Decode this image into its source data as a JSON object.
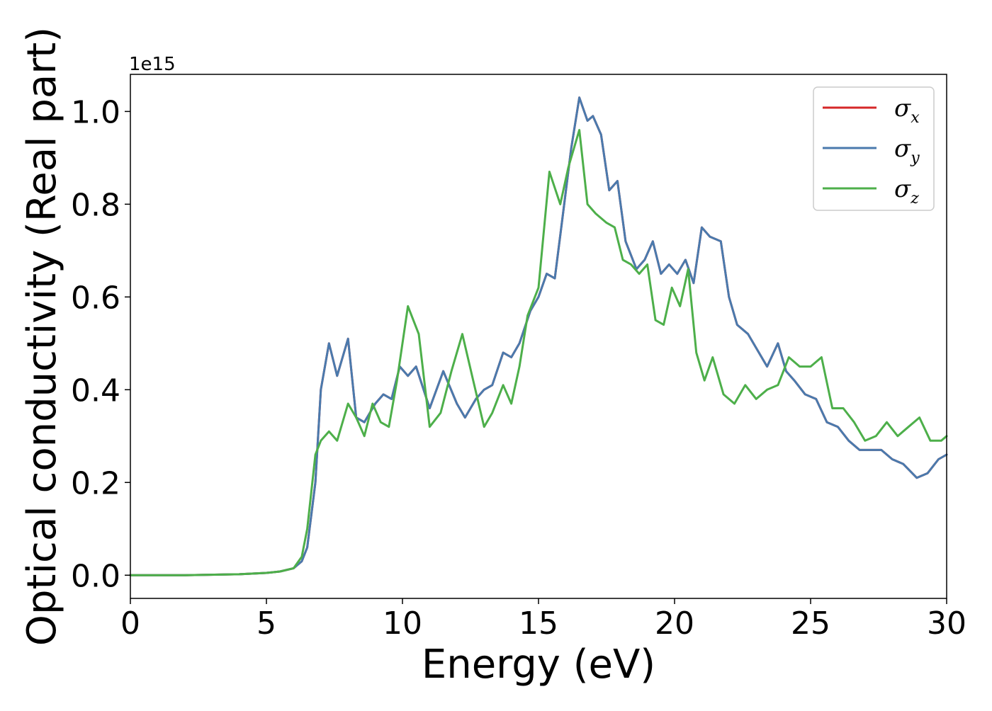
{
  "chart_data": {
    "type": "line",
    "title": "",
    "xlabel": "Energy (eV)",
    "ylabel": "Optical conductivity (Real part)",
    "y_offset_text": "1e15",
    "xlim": [
      0,
      30
    ],
    "ylim": [
      -0.05,
      1.08
    ],
    "xticks": [
      0,
      5,
      10,
      15,
      20,
      25,
      30
    ],
    "xtick_labels": [
      "0",
      "5",
      "10",
      "15",
      "20",
      "25",
      "30"
    ],
    "yticks": [
      0.0,
      0.2,
      0.4,
      0.6,
      0.8,
      1.0
    ],
    "ytick_labels": [
      "0.0",
      "0.2",
      "0.4",
      "0.6",
      "0.8",
      "1.0"
    ],
    "grid": false,
    "legend_position": "top-right",
    "series": [
      {
        "name": "σx",
        "legend_symbol": "σ",
        "legend_subscript": "x",
        "color": "#d62728",
        "x": [
          0,
          2,
          4,
          5,
          5.5,
          6,
          6.3,
          6.5,
          6.8,
          7.0,
          7.3,
          7.6,
          8.0,
          8.3,
          8.6,
          9.0,
          9.3,
          9.6,
          9.9,
          10.2,
          10.5,
          11.0,
          11.5,
          12.0,
          12.3,
          12.7,
          13.0,
          13.3,
          13.7,
          14.0,
          14.3,
          14.7,
          15.0,
          15.3,
          15.6,
          15.9,
          16.2,
          16.5,
          16.8,
          17.0,
          17.3,
          17.6,
          17.9,
          18.2,
          18.6,
          18.9,
          19.2,
          19.5,
          19.8,
          20.1,
          20.4,
          20.7,
          21.0,
          21.3,
          21.7,
          22.0,
          22.3,
          22.7,
          23.0,
          23.4,
          23.8,
          24.1,
          24.4,
          24.8,
          25.2,
          25.6,
          26.0,
          26.4,
          26.8,
          27.2,
          27.6,
          28.0,
          28.4,
          28.9,
          29.3,
          29.7,
          30.0
        ],
        "y": [
          0.0,
          0.0,
          0.002,
          0.005,
          0.008,
          0.015,
          0.03,
          0.06,
          0.2,
          0.4,
          0.5,
          0.43,
          0.51,
          0.34,
          0.33,
          0.37,
          0.39,
          0.38,
          0.45,
          0.43,
          0.45,
          0.36,
          0.44,
          0.37,
          0.34,
          0.38,
          0.4,
          0.41,
          0.48,
          0.47,
          0.5,
          0.57,
          0.6,
          0.65,
          0.64,
          0.78,
          0.92,
          1.03,
          0.98,
          0.99,
          0.95,
          0.83,
          0.85,
          0.72,
          0.66,
          0.68,
          0.72,
          0.65,
          0.67,
          0.65,
          0.68,
          0.63,
          0.75,
          0.73,
          0.72,
          0.6,
          0.54,
          0.52,
          0.49,
          0.45,
          0.5,
          0.44,
          0.42,
          0.39,
          0.38,
          0.33,
          0.32,
          0.29,
          0.27,
          0.27,
          0.27,
          0.25,
          0.24,
          0.21,
          0.22,
          0.25,
          0.26
        ]
      },
      {
        "name": "σy",
        "legend_symbol": "σ",
        "legend_subscript": "y",
        "color": "#4a7aad",
        "x": [
          0,
          2,
          4,
          5,
          5.5,
          6,
          6.3,
          6.5,
          6.8,
          7.0,
          7.3,
          7.6,
          8.0,
          8.3,
          8.6,
          9.0,
          9.3,
          9.6,
          9.9,
          10.2,
          10.5,
          11.0,
          11.5,
          12.0,
          12.3,
          12.7,
          13.0,
          13.3,
          13.7,
          14.0,
          14.3,
          14.7,
          15.0,
          15.3,
          15.6,
          15.9,
          16.2,
          16.5,
          16.8,
          17.0,
          17.3,
          17.6,
          17.9,
          18.2,
          18.6,
          18.9,
          19.2,
          19.5,
          19.8,
          20.1,
          20.4,
          20.7,
          21.0,
          21.3,
          21.7,
          22.0,
          22.3,
          22.7,
          23.0,
          23.4,
          23.8,
          24.1,
          24.4,
          24.8,
          25.2,
          25.6,
          26.0,
          26.4,
          26.8,
          27.2,
          27.6,
          28.0,
          28.4,
          28.9,
          29.3,
          29.7,
          30.0
        ],
        "y": [
          0.0,
          0.0,
          0.002,
          0.005,
          0.008,
          0.015,
          0.03,
          0.06,
          0.2,
          0.4,
          0.5,
          0.43,
          0.51,
          0.34,
          0.33,
          0.37,
          0.39,
          0.38,
          0.45,
          0.43,
          0.45,
          0.36,
          0.44,
          0.37,
          0.34,
          0.38,
          0.4,
          0.41,
          0.48,
          0.47,
          0.5,
          0.57,
          0.6,
          0.65,
          0.64,
          0.78,
          0.92,
          1.03,
          0.98,
          0.99,
          0.95,
          0.83,
          0.85,
          0.72,
          0.66,
          0.68,
          0.72,
          0.65,
          0.67,
          0.65,
          0.68,
          0.63,
          0.75,
          0.73,
          0.72,
          0.6,
          0.54,
          0.52,
          0.49,
          0.45,
          0.5,
          0.44,
          0.42,
          0.39,
          0.38,
          0.33,
          0.32,
          0.29,
          0.27,
          0.27,
          0.27,
          0.25,
          0.24,
          0.21,
          0.22,
          0.25,
          0.26
        ]
      },
      {
        "name": "σz",
        "legend_symbol": "σ",
        "legend_subscript": "z",
        "color": "#4daf4a",
        "x": [
          0,
          2,
          4,
          5,
          5.5,
          6,
          6.3,
          6.5,
          6.8,
          7.0,
          7.3,
          7.6,
          8.0,
          8.3,
          8.6,
          8.9,
          9.2,
          9.5,
          9.8,
          10.2,
          10.6,
          11.0,
          11.4,
          11.8,
          12.2,
          12.6,
          13.0,
          13.3,
          13.7,
          14.0,
          14.3,
          14.6,
          15.0,
          15.4,
          15.8,
          16.1,
          16.5,
          16.8,
          17.1,
          17.5,
          17.8,
          18.1,
          18.4,
          18.7,
          19.0,
          19.3,
          19.6,
          19.9,
          20.2,
          20.5,
          20.8,
          21.1,
          21.4,
          21.8,
          22.2,
          22.6,
          23.0,
          23.4,
          23.8,
          24.2,
          24.6,
          25.0,
          25.4,
          25.8,
          26.2,
          26.6,
          27.0,
          27.4,
          27.8,
          28.2,
          28.6,
          29.0,
          29.4,
          29.8,
          30.0
        ],
        "y": [
          0.0,
          0.0,
          0.002,
          0.005,
          0.008,
          0.015,
          0.04,
          0.1,
          0.26,
          0.29,
          0.31,
          0.29,
          0.37,
          0.34,
          0.3,
          0.37,
          0.33,
          0.32,
          0.42,
          0.58,
          0.52,
          0.32,
          0.35,
          0.44,
          0.52,
          0.42,
          0.32,
          0.35,
          0.41,
          0.37,
          0.45,
          0.56,
          0.62,
          0.87,
          0.8,
          0.88,
          0.96,
          0.8,
          0.78,
          0.76,
          0.75,
          0.68,
          0.67,
          0.65,
          0.67,
          0.55,
          0.54,
          0.62,
          0.58,
          0.66,
          0.48,
          0.42,
          0.47,
          0.39,
          0.37,
          0.41,
          0.38,
          0.4,
          0.41,
          0.47,
          0.45,
          0.45,
          0.47,
          0.36,
          0.36,
          0.33,
          0.29,
          0.3,
          0.33,
          0.3,
          0.32,
          0.34,
          0.29,
          0.29,
          0.3
        ]
      }
    ]
  }
}
